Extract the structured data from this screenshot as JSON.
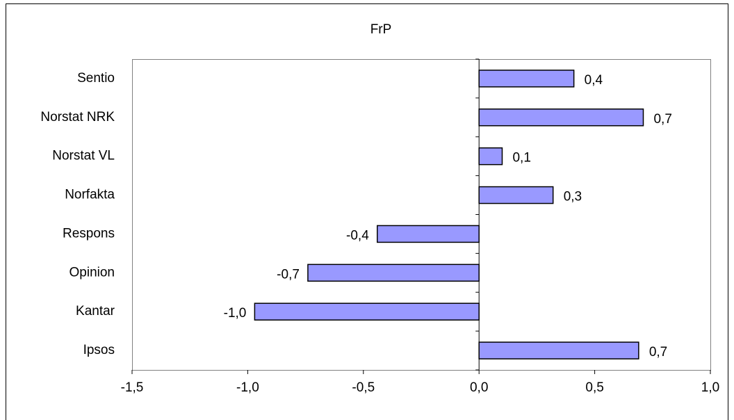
{
  "chart_data": {
    "type": "bar",
    "orientation": "horizontal",
    "title": "FrP",
    "categories": [
      "Sentio",
      "Norstat NRK",
      "Norstat VL",
      "Norfakta",
      "Respons",
      "Opinion",
      "Kantar",
      "Ipsos"
    ],
    "values": [
      0.41,
      0.71,
      0.1,
      0.32,
      -0.44,
      -0.74,
      -0.97,
      0.69
    ],
    "value_labels": [
      "0,4",
      "0,7",
      "0,1",
      "0,3",
      "-0,4",
      "-0,7",
      "-1,0",
      "0,7"
    ],
    "color": "#9999ff",
    "xlim": [
      -1.5,
      1.0
    ],
    "xticks": [
      {
        "value": -1.5,
        "label": "-1,5"
      },
      {
        "value": -1.0,
        "label": "-1,0"
      },
      {
        "value": -0.5,
        "label": "-0,5"
      },
      {
        "value": 0,
        "label": "0,0"
      },
      {
        "value": 0.5,
        "label": "0,5"
      },
      {
        "value": 1.0,
        "label": "1,0"
      }
    ],
    "grid": false
  }
}
